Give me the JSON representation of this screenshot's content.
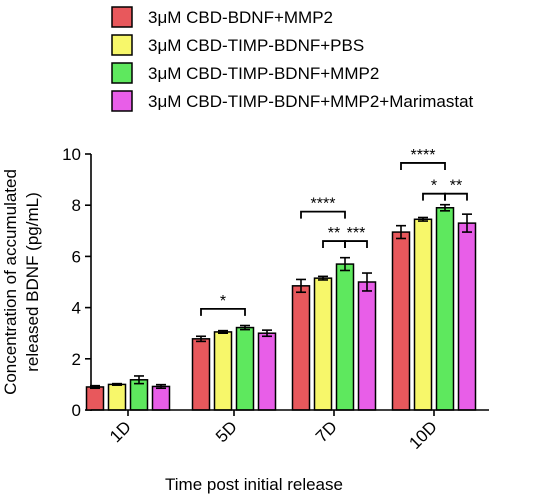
{
  "chart_data": {
    "type": "bar",
    "ylabel": "Concentration of accumulated released BDNF (pg/mL)",
    "ylabel_lines": [
      "Concentration of accumulated",
      "released BDNF (pg/mL)"
    ],
    "xlabel": "Time post initial release",
    "ylim": [
      0,
      10
    ],
    "yticks": [
      0,
      2,
      4,
      6,
      8,
      10
    ],
    "categories": [
      "1D",
      "5D",
      "7D",
      "10D"
    ],
    "legend_position": "top",
    "series": [
      {
        "name": "3μM CBD-BDNF+MMP2",
        "color": "#e8585c",
        "values": [
          0.9,
          2.78,
          4.85,
          6.95
        ],
        "errors": [
          0.05,
          0.1,
          0.25,
          0.25
        ]
      },
      {
        "name": "3μM CBD-TIMP-BDNF+PBS",
        "color": "#f7f76a",
        "values": [
          1.0,
          3.05,
          5.15,
          7.45
        ],
        "errors": [
          0.03,
          0.05,
          0.07,
          0.07
        ]
      },
      {
        "name": "3μM CBD-TIMP-BDNF+MMP2",
        "color": "#5ee85e",
        "values": [
          1.18,
          3.22,
          5.7,
          7.9
        ],
        "errors": [
          0.15,
          0.08,
          0.25,
          0.12
        ]
      },
      {
        "name": "3μM CBD-TIMP-BDNF+MMP2+Marimastat",
        "color": "#e85ee8",
        "values": [
          0.92,
          3.0,
          5.0,
          7.3
        ],
        "errors": [
          0.07,
          0.12,
          0.35,
          0.35
        ]
      }
    ],
    "significance": [
      {
        "category": 1,
        "from": 0,
        "to": 2,
        "y": 3.95,
        "label": "*"
      },
      {
        "category": 2,
        "from": 0,
        "to": 2,
        "y": 7.75,
        "label": "****"
      },
      {
        "category": 2,
        "from": 1,
        "to": 2,
        "y": 6.6,
        "label": "**"
      },
      {
        "category": 2,
        "from": 2,
        "to": 3,
        "y": 6.6,
        "label": "***"
      },
      {
        "category": 3,
        "from": 0,
        "to": 2,
        "y": 9.65,
        "label": "****"
      },
      {
        "category": 3,
        "from": 1,
        "to": 2,
        "y": 8.45,
        "label": "*"
      },
      {
        "category": 3,
        "from": 2,
        "to": 3,
        "y": 8.45,
        "label": "**"
      }
    ]
  }
}
